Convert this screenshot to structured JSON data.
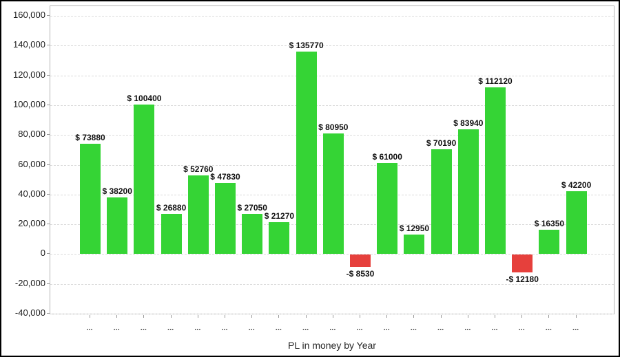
{
  "window": {
    "background": "#ffffff",
    "border_color": "#000000"
  },
  "chart_data": {
    "type": "bar",
    "title": "",
    "xlabel": "PL in money by Year",
    "ylabel": "",
    "ylim": [
      -40000,
      160000
    ],
    "ytick_interval": 20000,
    "ytick_labels": [
      "160,000",
      "140,000",
      "120,000",
      "100,000",
      "80,000",
      "60,000",
      "40,000",
      "20,000",
      "0",
      "-20,000",
      "-40,000"
    ],
    "grid": "horizontal-dashed",
    "legend_position": "none",
    "categories": [
      "...",
      "...",
      "...",
      "...",
      "...",
      "...",
      "...",
      "...",
      "...",
      "...",
      "...",
      "...",
      "...",
      "...",
      "...",
      "...",
      "...",
      "...",
      "..."
    ],
    "series": [
      {
        "name": "PL in money",
        "values": [
          73880,
          38200,
          100400,
          26880,
          52760,
          47830,
          27050,
          21270,
          135770,
          80950,
          -8530,
          61000,
          12950,
          70190,
          83940,
          112120,
          -12180,
          16350,
          42200
        ],
        "labels": [
          "$ 73880",
          "$ 38200",
          "$ 100400",
          "$ 26880",
          "$ 52760",
          "$ 47830",
          "$ 27050",
          "$ 21270",
          "$ 135770",
          "$ 80950",
          "-$ 8530",
          "$ 61000",
          "$ 12950",
          "$ 70190",
          "$ 83940",
          "$ 112120",
          "-$ 12180",
          "$ 16350",
          "$ 42200"
        ]
      }
    ],
    "colors": {
      "positive": "#35d435",
      "negative": "#e6403c",
      "grid": "#d9d9d9",
      "plot_border": "#b3b3b3",
      "bar_label": "#111111",
      "axis_text": "#1a1a1a"
    }
  }
}
